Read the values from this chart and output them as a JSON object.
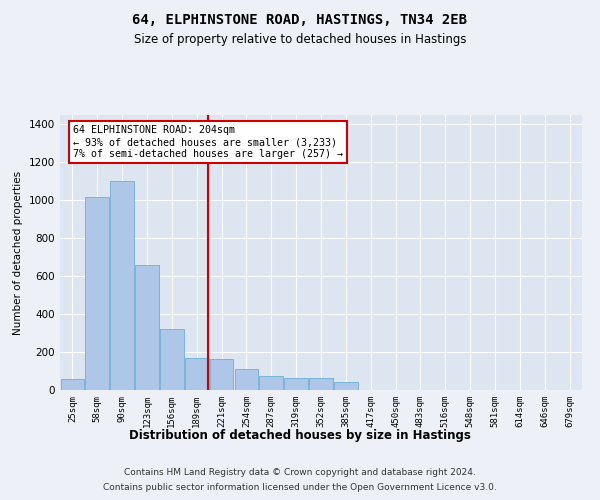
{
  "title": "64, ELPHINSTONE ROAD, HASTINGS, TN34 2EB",
  "subtitle": "Size of property relative to detached houses in Hastings",
  "xlabel": "Distribution of detached houses by size in Hastings",
  "ylabel": "Number of detached properties",
  "footer_line1": "Contains HM Land Registry data © Crown copyright and database right 2024.",
  "footer_line2": "Contains public sector information licensed under the Open Government Licence v3.0.",
  "bin_labels": [
    "25sqm",
    "58sqm",
    "90sqm",
    "123sqm",
    "156sqm",
    "189sqm",
    "221sqm",
    "254sqm",
    "287sqm",
    "319sqm",
    "352sqm",
    "385sqm",
    "417sqm",
    "450sqm",
    "483sqm",
    "516sqm",
    "548sqm",
    "581sqm",
    "614sqm",
    "646sqm",
    "679sqm"
  ],
  "bar_values": [
    60,
    1020,
    1100,
    660,
    320,
    170,
    165,
    110,
    75,
    65,
    65,
    40,
    0,
    0,
    0,
    0,
    0,
    0,
    0,
    0,
    0
  ],
  "bar_color": "#aec6e8",
  "bar_edge_color": "#6baed6",
  "red_line_color": "#cc0000",
  "annotation_text": "64 ELPHINSTONE ROAD: 204sqm\n← 93% of detached houses are smaller (3,233)\n7% of semi-detached houses are larger (257) →",
  "annotation_box_color": "#cc0000",
  "ylim": [
    0,
    1450
  ],
  "yticks": [
    0,
    200,
    400,
    600,
    800,
    1000,
    1200,
    1400
  ],
  "background_color": "#dde6f0",
  "fig_background_color": "#edf1f7",
  "grid_color": "#ffffff",
  "figsize": [
    6.0,
    5.0
  ],
  "dpi": 100,
  "title_fontsize": 10,
  "subtitle_fontsize": 8.5
}
